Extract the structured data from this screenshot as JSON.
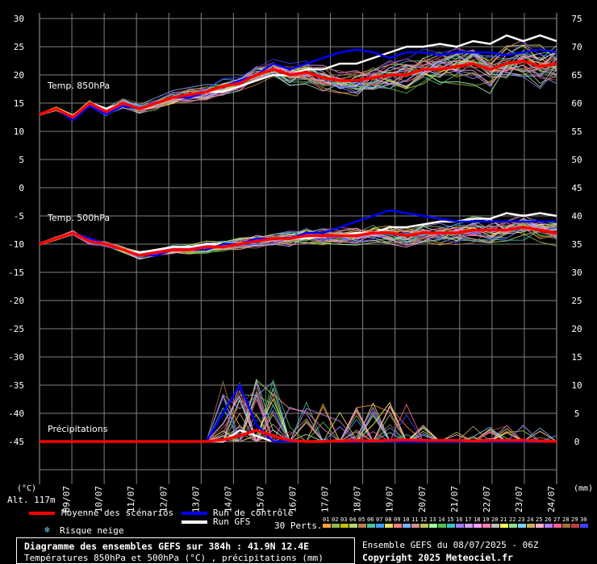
{
  "chart_data": {
    "type": "line",
    "x_dates": [
      "09/07",
      "10/07",
      "11/07",
      "12/07",
      "13/07",
      "14/07",
      "15/07",
      "16/07",
      "17/07",
      "18/07",
      "19/07",
      "20/07",
      "21/07",
      "22/07",
      "23/07",
      "24/07"
    ],
    "left_axis": {
      "unit": "(°C)",
      "ticks": [
        30,
        25,
        20,
        15,
        10,
        5,
        0,
        -5,
        -10,
        -15,
        -20,
        -25,
        -30,
        -35,
        -40,
        -45
      ]
    },
    "right_axis": {
      "unit": "(mm)",
      "ticks_temp850": [
        75,
        70,
        65,
        60,
        55,
        50,
        45
      ],
      "ticks_temp500": [
        40,
        35,
        30
      ],
      "ticks_precip": [
        25,
        20,
        15,
        10,
        5,
        0
      ]
    },
    "panels": {
      "t850_label": "Temp. 850hPa",
      "t500_label": "Temp. 500hPa",
      "precip_label": "Précipitations"
    },
    "series": [
      {
        "name": "Moyenne des scénarios",
        "color": "#ff0000",
        "t850": [
          13,
          14,
          12.5,
          15,
          13.5,
          15,
          14,
          15,
          16,
          16.5,
          17,
          18,
          18.5,
          20,
          21,
          20,
          20.5,
          19.5,
          19,
          19,
          19.5,
          20,
          20,
          21,
          21,
          21.5,
          22,
          21,
          22,
          22.5,
          21.5,
          22
        ],
        "t500": [
          -10,
          -9,
          -8,
          -9.5,
          -10,
          -11,
          -12,
          -11.5,
          -11,
          -11,
          -10.5,
          -10.5,
          -10,
          -9.5,
          -9,
          -9,
          -8.5,
          -8.5,
          -8.5,
          -8.5,
          -8,
          -8,
          -8.5,
          -8,
          -8,
          -8,
          -7.5,
          -7.5,
          -7.5,
          -7,
          -7.5,
          -8
        ],
        "precip": [
          0,
          0,
          0,
          0,
          0,
          0,
          0,
          0,
          0,
          0,
          0,
          0.3,
          1,
          2,
          1,
          0.2,
          0,
          0,
          0.1,
          0.2,
          0.1,
          0.2,
          0.3,
          0.2,
          0.2,
          0.2,
          0.1,
          0.2,
          0.2,
          0.2,
          0.1,
          0
        ]
      },
      {
        "name": "Run de contrôle",
        "color": "#0000ff",
        "t850": [
          13,
          14,
          12,
          14.5,
          13,
          14.5,
          14,
          15,
          16,
          16,
          17,
          18,
          19,
          20,
          22,
          21,
          22,
          23,
          24,
          24.5,
          24,
          23,
          24,
          24,
          23.5,
          24,
          24,
          24,
          23.5,
          24,
          24.5,
          24
        ],
        "t500": [
          -10,
          -9,
          -8,
          -9,
          -10,
          -11,
          -12,
          -12,
          -11,
          -11,
          -11,
          -10,
          -10,
          -9,
          -9,
          -9,
          -8,
          -8,
          -7,
          -6,
          -5,
          -4,
          -4.5,
          -5,
          -5.5,
          -6,
          -6,
          -6,
          -6,
          -6,
          -6,
          -6
        ],
        "precip": [
          0,
          0,
          0,
          0,
          0,
          0,
          0,
          0,
          0,
          0,
          0,
          5,
          10,
          3,
          0,
          0,
          0,
          0,
          0,
          0,
          0,
          0,
          0,
          0,
          0,
          0,
          0,
          0,
          0,
          0,
          0,
          0
        ]
      },
      {
        "name": "Run GFS",
        "color": "#ffffff",
        "t850": [
          13,
          14,
          12,
          15,
          14,
          15,
          14,
          15,
          16,
          16,
          17,
          17,
          18,
          19,
          20,
          20,
          21,
          21,
          22,
          22,
          23,
          24,
          25,
          25,
          25.5,
          25,
          26,
          25.5,
          27,
          26,
          27,
          26
        ],
        "t500": [
          -10,
          -9,
          -8,
          -9,
          -10,
          -11,
          -11.5,
          -11,
          -10.5,
          -10.5,
          -10,
          -10,
          -10,
          -9,
          -9,
          -9,
          -9,
          -8.5,
          -8.5,
          -8,
          -8,
          -7,
          -7,
          -6.5,
          -6,
          -6,
          -5.5,
          -5.5,
          -4.5,
          -5,
          -4.5,
          -5
        ],
        "precip": [
          0,
          0,
          0,
          0,
          0,
          0,
          0,
          0,
          0,
          0,
          0,
          0,
          2,
          1,
          0,
          0,
          0,
          0,
          0,
          0,
          0,
          0,
          0,
          0,
          0,
          0,
          0,
          0,
          0,
          0,
          0,
          0
        ]
      }
    ],
    "legend": {
      "mean": "Moyenne des scénarios",
      "control": "Run de contrôle",
      "gfs": "Run GFS",
      "snow": "Risque neige",
      "perts": "30 Perts.",
      "pert_labels": [
        "01",
        "02",
        "03",
        "04",
        "05",
        "06",
        "07",
        "08",
        "09",
        "10",
        "11",
        "12",
        "13",
        "14",
        "15",
        "16",
        "17",
        "18",
        "19",
        "20",
        "21",
        "22",
        "23",
        "24",
        "25",
        "26",
        "27",
        "28",
        "29",
        "30"
      ],
      "pert_colors": [
        "#ff9f3f",
        "#8fbc4f",
        "#c0c000",
        "#b5d86f",
        "#c08050",
        "#4fbf9f",
        "#3f9fff",
        "#e0e060",
        "#ff7f7f",
        "#7fafff",
        "#d09090",
        "#bfbf60",
        "#a0ffa0",
        "#50c050",
        "#3fc0c0",
        "#9f7fff",
        "#d0a0ff",
        "#ffa0ff",
        "#ff7fb0",
        "#c0c0c0",
        "#ffff60",
        "#90e090",
        "#7fd0ff",
        "#d0b060",
        "#ffb0d0",
        "#b080ff",
        "#ff6090",
        "#a07040",
        "#c04040",
        "#4040ff"
      ]
    },
    "altitude": "Alt. 117m",
    "title": "Diagramme des ensembles GEFS sur 384h : 41.9N 12.4E",
    "subtitle": "Températures 850hPa et 500hPa (°C) , précipitations (mm)",
    "run_info": "Ensemble GEFS du 08/07/2025 - 06Z",
    "copyright": "Copyright 2025 Meteociel.fr"
  }
}
